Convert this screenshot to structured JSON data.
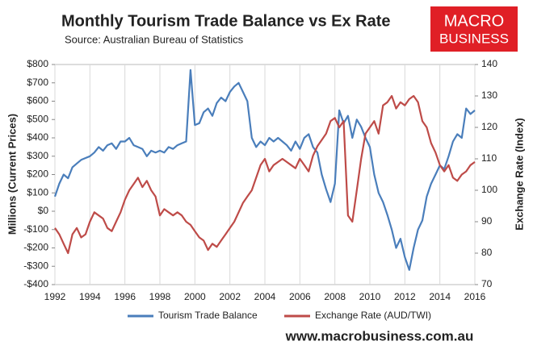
{
  "chart_data": {
    "type": "line",
    "title": "Monthly Tourism Trade Balance vs Ex Rate",
    "subtitle": "Source: Australian Bureau of Statistics",
    "logo": [
      "MACRO",
      "BUSINESS"
    ],
    "footer": "www.macrobusiness.com.au",
    "ylabel": "Millions (Current Prices)",
    "y2label": "Exchange Rate (Index)",
    "x": [
      1992,
      1992.25,
      1992.5,
      1992.75,
      1993,
      1993.25,
      1993.5,
      1993.75,
      1994,
      1994.25,
      1994.5,
      1994.75,
      1995,
      1995.25,
      1995.5,
      1995.75,
      1996,
      1996.25,
      1996.5,
      1996.75,
      1997,
      1997.25,
      1997.5,
      1997.75,
      1998,
      1998.25,
      1998.5,
      1998.75,
      1999,
      1999.25,
      1999.5,
      1999.75,
      2000,
      2000.25,
      2000.5,
      2000.75,
      2001,
      2001.25,
      2001.5,
      2001.75,
      2002,
      2002.25,
      2002.5,
      2002.75,
      2003,
      2003.25,
      2003.5,
      2003.75,
      2004,
      2004.25,
      2004.5,
      2004.75,
      2005,
      2005.25,
      2005.5,
      2005.75,
      2006,
      2006.25,
      2006.5,
      2006.75,
      2007,
      2007.25,
      2007.5,
      2007.75,
      2008,
      2008.25,
      2008.5,
      2008.75,
      2009,
      2009.25,
      2009.5,
      2009.75,
      2010,
      2010.25,
      2010.5,
      2010.75,
      2011,
      2011.25,
      2011.5,
      2011.75,
      2012,
      2012.25,
      2012.5,
      2012.75,
      2013,
      2013.25,
      2013.5,
      2013.75,
      2014,
      2014.25,
      2014.5,
      2014.75,
      2015,
      2015.25,
      2015.5,
      2015.75,
      2016
    ],
    "series": [
      {
        "name": "Tourism Trade Balance",
        "color": "#4a7ebb",
        "axis": "y",
        "values": [
          80,
          150,
          200,
          180,
          240,
          260,
          280,
          290,
          300,
          320,
          350,
          330,
          360,
          370,
          340,
          380,
          380,
          400,
          360,
          350,
          340,
          300,
          330,
          320,
          330,
          320,
          350,
          340,
          360,
          370,
          380,
          770,
          470,
          480,
          540,
          560,
          520,
          590,
          620,
          600,
          650,
          680,
          700,
          650,
          600,
          400,
          350,
          380,
          360,
          400,
          380,
          400,
          380,
          360,
          330,
          380,
          340,
          400,
          420,
          350,
          320,
          200,
          120,
          50,
          150,
          550,
          480,
          520,
          400,
          500,
          460,
          400,
          350,
          200,
          100,
          50,
          -20,
          -100,
          -200,
          -150,
          -250,
          -320,
          -200,
          -100,
          -50,
          80,
          150,
          200,
          250,
          230,
          300,
          380,
          420,
          400,
          560,
          530,
          550
        ]
      },
      {
        "name": "Exchange Rate (AUD/TWI)",
        "color": "#be4b48",
        "axis": "y2",
        "values": [
          88,
          86,
          83,
          80,
          86,
          88,
          85,
          86,
          90,
          93,
          92,
          91,
          88,
          87,
          90,
          93,
          97,
          100,
          102,
          104,
          101,
          103,
          100,
          98,
          92,
          94,
          93,
          92,
          93,
          92,
          90,
          89,
          87,
          85,
          84,
          81,
          83,
          82,
          84,
          86,
          88,
          90,
          93,
          96,
          98,
          100,
          104,
          108,
          110,
          106,
          108,
          109,
          110,
          109,
          108,
          107,
          110,
          108,
          106,
          111,
          114,
          116,
          118,
          122,
          123,
          120,
          122,
          92,
          90,
          100,
          110,
          118,
          120,
          122,
          118,
          127,
          128,
          130,
          126,
          128,
          127,
          129,
          130,
          128,
          122,
          120,
          115,
          112,
          108,
          106,
          108,
          104,
          103,
          105,
          106,
          108,
          109
        ]
      }
    ],
    "xlim": [
      1992,
      2016
    ],
    "xticks": [
      1992,
      1994,
      1996,
      1998,
      2000,
      2002,
      2004,
      2006,
      2008,
      2010,
      2012,
      2014,
      2016
    ],
    "ylim": [
      -400,
      800
    ],
    "yticks": [
      {
        "value": -400,
        "label": "-$400"
      },
      {
        "value": -300,
        "label": "-$300"
      },
      {
        "value": -200,
        "label": "-$200"
      },
      {
        "value": -100,
        "label": "-$100"
      },
      {
        "value": 0,
        "label": "$0"
      },
      {
        "value": 100,
        "label": "$100"
      },
      {
        "value": 200,
        "label": "$200"
      },
      {
        "value": 300,
        "label": "$300"
      },
      {
        "value": 400,
        "label": "$400"
      },
      {
        "value": 500,
        "label": "$500"
      },
      {
        "value": 600,
        "label": "$600"
      },
      {
        "value": 700,
        "label": "$700"
      },
      {
        "value": 800,
        "label": "$800"
      }
    ],
    "y2lim": [
      70,
      140
    ],
    "y2ticks": [
      70,
      80,
      90,
      100,
      110,
      120,
      130,
      140
    ],
    "grid": true
  }
}
